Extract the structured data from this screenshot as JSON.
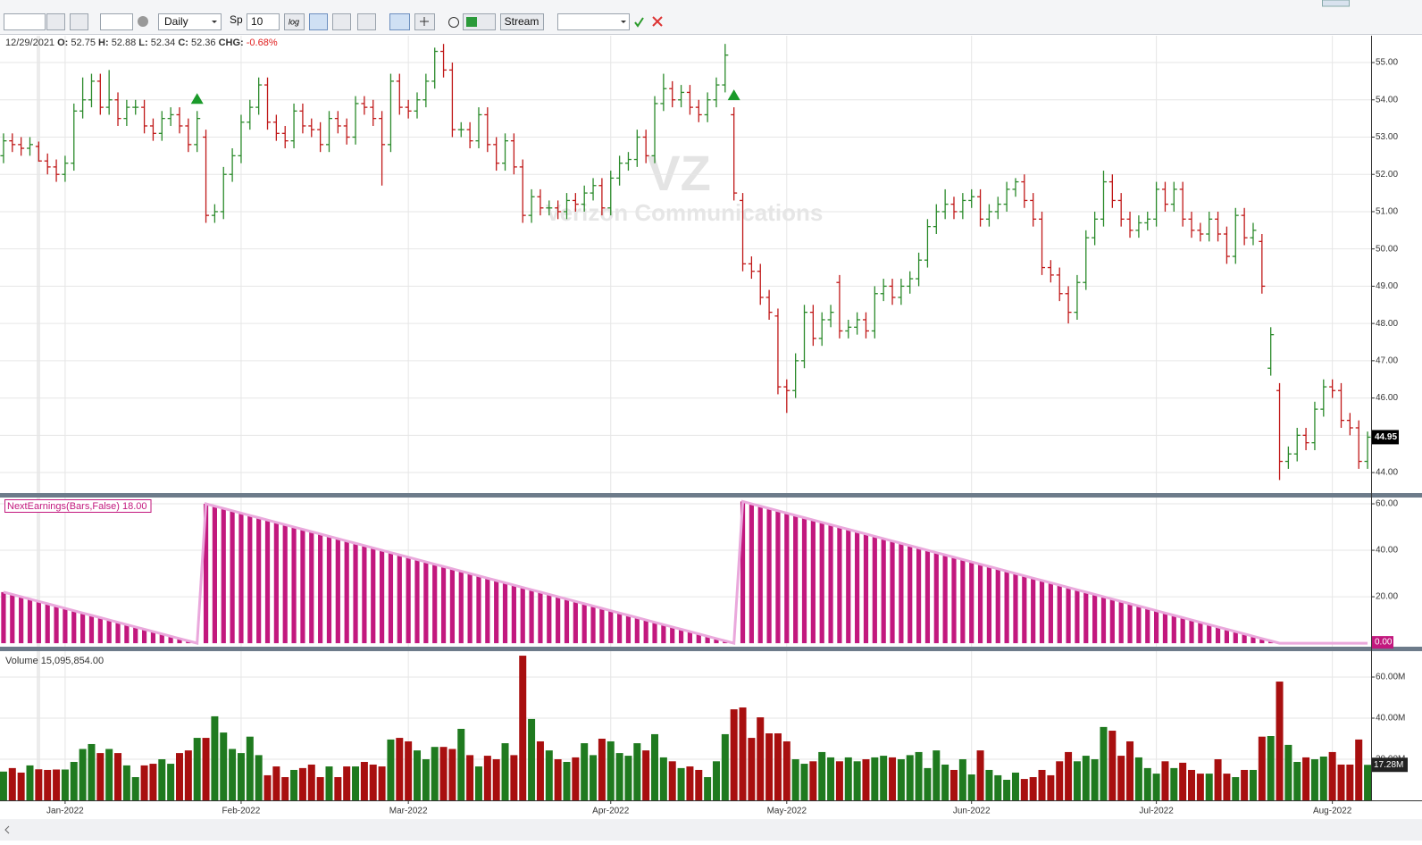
{
  "toolbar": {
    "interval": "Daily",
    "sp_label": "Sp",
    "sp_value": "10",
    "log": "log",
    "stream": "Stream"
  },
  "header": {
    "date": "12/29/2021",
    "o_label": "O:",
    "open": 52.75,
    "h_label": "H:",
    "high": 52.88,
    "l_label": "L:",
    "low": 52.34,
    "c_label": "C:",
    "close": 52.36,
    "chg_label": "CHG:",
    "chg": "-0.68%"
  },
  "watermark": {
    "symbol": "VZ",
    "name": "Verizon Communications"
  },
  "chart_data": [
    {
      "type": "ohlc",
      "xlim": [
        -0.4,
        155.4
      ],
      "ylim": [
        43.45,
        55.72
      ],
      "up_color": "#2a8a2a",
      "down_color": "#c01818",
      "grid": true,
      "yticks": [
        {
          "value": 44,
          "label": "44.00"
        },
        {
          "value": 45,
          "label": "45.00"
        },
        {
          "value": 46,
          "label": "46.00"
        },
        {
          "value": 47,
          "label": "47.00"
        },
        {
          "value": 48,
          "label": "48.00"
        },
        {
          "value": 49,
          "label": "49.00"
        },
        {
          "value": 50,
          "label": "50.00"
        },
        {
          "value": 51,
          "label": "51.00"
        },
        {
          "value": 52,
          "label": "52.00"
        },
        {
          "value": 53,
          "label": "53.00"
        },
        {
          "value": 54,
          "label": "54.00"
        },
        {
          "value": 55,
          "label": "55.00"
        }
      ],
      "events": [
        22,
        83
      ],
      "event_color": "#1a9a2a",
      "last_label": "44.95",
      "open": [
        52.5,
        52.9,
        52.8,
        52.7,
        52.75,
        52.36,
        52.2,
        52.0,
        52.3,
        53.7,
        54.0,
        54.5,
        53.8,
        54.0,
        53.5,
        53.8,
        53.8,
        53.3,
        53.1,
        53.5,
        53.6,
        53.3,
        52.8,
        53.0,
        50.9,
        51.0,
        52.0,
        52.5,
        53.4,
        53.8,
        54.4,
        53.4,
        53.1,
        52.9,
        53.7,
        53.3,
        53.2,
        52.8,
        53.5,
        53.3,
        53.0,
        53.9,
        53.8,
        53.5,
        52.8,
        54.5,
        53.8,
        53.7,
        54.0,
        54.5,
        55.3,
        54.8,
        53.2,
        53.2,
        52.9,
        53.6,
        52.8,
        52.3,
        52.9,
        52.2,
        50.9,
        51.4,
        51.1,
        51.1,
        51.0,
        51.3,
        51.2,
        51.5,
        51.7,
        51.1,
        51.9,
        52.3,
        52.4,
        53.0,
        52.5,
        53.9,
        54.3,
        54.0,
        54.2,
        53.8,
        53.6,
        54.0,
        54.4,
        53.6,
        51.3,
        49.6,
        49.4,
        48.7,
        48.2,
        46.3,
        46.2,
        47.0,
        48.3,
        47.6,
        48.1,
        49.1,
        47.8,
        47.9,
        48.1,
        47.8,
        48.8,
        49.0,
        48.7,
        49.0,
        49.2,
        49.7,
        50.6,
        51.0,
        51.2,
        51.0,
        51.3,
        51.4,
        50.8,
        51.0,
        51.2,
        51.6,
        51.8,
        51.3,
        50.8,
        49.5,
        49.3,
        48.8,
        48.3,
        49.1,
        50.3,
        50.8,
        51.8,
        51.3,
        50.8,
        50.5,
        50.7,
        50.8,
        51.6,
        51.2,
        51.6,
        50.8,
        50.5,
        50.4,
        50.8,
        50.4,
        49.8,
        50.9,
        50.3,
        50.2,
        46.8,
        46.2,
        44.3,
        44.5,
        45.0,
        44.8,
        45.7,
        46.3,
        46.2,
        45.4,
        45.2,
        44.3
      ],
      "high": [
        53.1,
        53.1,
        53.0,
        53.0,
        52.88,
        52.56,
        52.4,
        52.5,
        53.9,
        54.6,
        54.7,
        54.7,
        54.8,
        54.2,
        54.0,
        54.0,
        54.0,
        53.5,
        53.7,
        53.8,
        53.8,
        53.5,
        53.7,
        53.2,
        51.2,
        52.2,
        52.7,
        53.6,
        54.0,
        54.6,
        54.6,
        53.6,
        53.3,
        53.9,
        53.9,
        53.5,
        53.4,
        53.7,
        53.7,
        53.5,
        54.1,
        54.1,
        54.0,
        53.7,
        54.7,
        54.7,
        54.0,
        54.2,
        54.7,
        55.4,
        55.5,
        55.0,
        53.4,
        53.4,
        53.8,
        53.8,
        53.0,
        53.1,
        53.1,
        52.4,
        51.6,
        51.6,
        51.3,
        51.3,
        51.5,
        51.5,
        51.7,
        51.9,
        51.9,
        52.1,
        52.5,
        52.6,
        53.2,
        53.2,
        54.1,
        54.7,
        54.5,
        54.4,
        54.4,
        54.0,
        54.2,
        54.6,
        55.5,
        53.8,
        51.5,
        49.8,
        49.6,
        48.9,
        48.4,
        46.5,
        47.2,
        48.5,
        48.5,
        48.3,
        48.5,
        49.3,
        48.1,
        48.3,
        48.3,
        49.0,
        49.2,
        49.2,
        49.2,
        49.4,
        49.9,
        50.8,
        51.2,
        51.6,
        51.4,
        51.5,
        51.6,
        51.6,
        51.2,
        51.4,
        51.8,
        51.9,
        52.0,
        51.5,
        51.0,
        49.7,
        49.5,
        49.0,
        49.3,
        50.5,
        51.0,
        52.1,
        52.0,
        51.5,
        51.0,
        50.9,
        51.0,
        51.8,
        51.8,
        51.8,
        51.8,
        51.0,
        50.7,
        51.0,
        51.0,
        50.6,
        51.1,
        51.1,
        50.7,
        50.4,
        47.9,
        46.4,
        44.7,
        45.2,
        45.2,
        45.9,
        46.5,
        46.5,
        46.4,
        45.6,
        45.4,
        45.1
      ],
      "low": [
        52.3,
        52.6,
        52.5,
        52.5,
        52.34,
        52.0,
        51.8,
        51.8,
        52.1,
        53.5,
        53.8,
        53.6,
        53.6,
        53.3,
        53.3,
        53.6,
        53.1,
        52.9,
        52.9,
        53.3,
        53.1,
        52.6,
        52.6,
        50.7,
        50.7,
        50.8,
        51.8,
        52.3,
        53.2,
        53.6,
        53.2,
        52.9,
        52.7,
        52.7,
        53.1,
        53.0,
        52.6,
        52.6,
        53.1,
        52.8,
        52.8,
        53.6,
        53.3,
        51.7,
        52.6,
        53.6,
        53.5,
        53.5,
        53.8,
        54.3,
        54.6,
        53.0,
        53.0,
        52.7,
        52.7,
        52.6,
        52.1,
        52.1,
        52.0,
        50.7,
        50.7,
        50.9,
        50.9,
        50.8,
        50.8,
        51.0,
        51.0,
        51.3,
        50.9,
        50.9,
        51.7,
        52.1,
        52.2,
        52.3,
        52.3,
        53.7,
        53.8,
        53.8,
        53.6,
        53.4,
        53.4,
        53.8,
        54.2,
        51.3,
        49.4,
        49.2,
        48.5,
        48.1,
        46.1,
        45.6,
        46.0,
        46.8,
        47.4,
        47.4,
        47.9,
        47.6,
        47.6,
        47.7,
        47.6,
        47.6,
        48.6,
        48.5,
        48.5,
        48.8,
        49.0,
        49.5,
        50.4,
        50.8,
        50.8,
        50.8,
        51.1,
        50.6,
        50.6,
        50.8,
        51.0,
        51.4,
        51.1,
        50.6,
        49.3,
        49.1,
        48.6,
        48.0,
        48.1,
        48.9,
        50.1,
        50.6,
        51.1,
        50.6,
        50.3,
        50.3,
        50.5,
        50.6,
        51.0,
        51.0,
        50.6,
        50.3,
        50.2,
        50.2,
        50.2,
        49.6,
        49.6,
        50.1,
        50.1,
        48.8,
        46.6,
        43.8,
        44.1,
        44.3,
        44.6,
        44.6,
        45.5,
        46.0,
        45.2,
        45.0,
        44.1,
        44.1
      ],
      "close": [
        52.9,
        52.8,
        52.7,
        52.8,
        52.36,
        52.2,
        52.0,
        52.3,
        53.7,
        54.0,
        54.5,
        53.8,
        54.0,
        53.5,
        53.8,
        53.8,
        53.3,
        53.1,
        53.5,
        53.6,
        53.3,
        52.8,
        53.5,
        50.9,
        51.0,
        52.0,
        52.5,
        53.4,
        53.8,
        54.4,
        53.4,
        53.1,
        52.9,
        53.7,
        53.3,
        53.2,
        52.8,
        53.5,
        53.3,
        53.0,
        53.9,
        53.8,
        53.5,
        52.8,
        54.5,
        53.8,
        53.7,
        54.0,
        54.5,
        55.3,
        54.8,
        53.2,
        53.2,
        52.9,
        53.6,
        52.8,
        52.3,
        52.9,
        52.2,
        50.9,
        51.4,
        51.1,
        51.1,
        51.0,
        51.3,
        51.2,
        51.5,
        51.7,
        51.1,
        51.9,
        52.3,
        52.4,
        53.0,
        52.5,
        53.9,
        54.3,
        54.0,
        54.2,
        53.8,
        53.6,
        54.0,
        54.4,
        55.2,
        51.5,
        49.6,
        49.4,
        48.7,
        48.3,
        46.3,
        46.2,
        47.0,
        48.3,
        47.6,
        48.1,
        48.3,
        47.8,
        47.9,
        48.1,
        47.8,
        48.8,
        49.0,
        48.7,
        49.0,
        49.2,
        49.7,
        50.6,
        51.0,
        51.2,
        51.0,
        51.3,
        51.4,
        50.8,
        51.0,
        51.2,
        51.6,
        51.8,
        51.3,
        50.8,
        49.5,
        49.3,
        48.8,
        48.3,
        49.1,
        50.3,
        50.8,
        51.8,
        51.3,
        50.8,
        50.5,
        50.7,
        50.8,
        51.6,
        51.2,
        51.6,
        50.8,
        50.5,
        50.4,
        50.8,
        50.4,
        49.8,
        50.9,
        50.3,
        50.5,
        49.0,
        47.7,
        44.3,
        44.5,
        45.0,
        44.8,
        45.7,
        46.3,
        46.2,
        45.4,
        45.2,
        44.3,
        44.95
      ]
    },
    {
      "type": "bar",
      "title": "NextEarnings(Bars,False) 18.00",
      "xlim": [
        -0.4,
        155.4
      ],
      "ylim": [
        -1.5,
        62.7
      ],
      "color": "#c2187e",
      "line_color": "#eaa8dc",
      "last_label": "0.00",
      "yticks": [
        {
          "value": 20,
          "label": "20.00"
        },
        {
          "value": 40,
          "label": "40.00"
        },
        {
          "value": 60,
          "label": "60.00"
        }
      ],
      "values": [
        22,
        21,
        20,
        19,
        18,
        17,
        16,
        15,
        14,
        13,
        12,
        11,
        10,
        9,
        8,
        7,
        6,
        5,
        4,
        3,
        2,
        1,
        0,
        60,
        59,
        58,
        57,
        56,
        55,
        54,
        53,
        52,
        51,
        50,
        49,
        48,
        47,
        46,
        45,
        44,
        43,
        42,
        41,
        40,
        39,
        38,
        37,
        36,
        35,
        34,
        33,
        32,
        31,
        30,
        29,
        28,
        27,
        26,
        25,
        24,
        23,
        22,
        21,
        20,
        19,
        18,
        17,
        16,
        15,
        14,
        13,
        12,
        11,
        10,
        9,
        8,
        7,
        6,
        5,
        4,
        3,
        2,
        1,
        0,
        61,
        60,
        59,
        58,
        57,
        56,
        55,
        54,
        53,
        52,
        51,
        50,
        49,
        48,
        47,
        46,
        45,
        44,
        43,
        42,
        41,
        40,
        39,
        38,
        37,
        36,
        35,
        34,
        33,
        32,
        31,
        30,
        29,
        28,
        27,
        26,
        25,
        24,
        23,
        22,
        21,
        20,
        19,
        18,
        17,
        16,
        15,
        14,
        13,
        12,
        11,
        10,
        9,
        8,
        7,
        6,
        5,
        4,
        3,
        2,
        1,
        0,
        0,
        0,
        0,
        0,
        0,
        0,
        0,
        0,
        0,
        0
      ]
    },
    {
      "type": "volume",
      "title": "Volume 15,095,854.00",
      "xlim": [
        -0.4,
        155.4
      ],
      "ylim": [
        0,
        72.6
      ],
      "up_color": "#1f7a1f",
      "down_color": "#a80f0f",
      "last_label": "17.28M",
      "yticks": [
        {
          "value": 20,
          "label": "20.00M"
        },
        {
          "value": 40,
          "label": "40.00M"
        },
        {
          "value": 60,
          "label": "60.00M"
        }
      ],
      "xticks": [
        {
          "value": 7,
          "label": "Jan-2022"
        },
        {
          "value": 27,
          "label": "Feb-2022"
        },
        {
          "value": 46,
          "label": "Mar-2022"
        },
        {
          "value": 69,
          "label": "Apr-2022"
        },
        {
          "value": 89,
          "label": "May-2022"
        },
        {
          "value": 110,
          "label": "Jun-2022"
        },
        {
          "value": 131,
          "label": "Jul-2022"
        },
        {
          "value": 151,
          "label": "Aug-2022"
        }
      ],
      "values": [
        14.0,
        15.7,
        13.5,
        17,
        15.1,
        14.8,
        15,
        15,
        18.7,
        25,
        27.4,
        23,
        25,
        23,
        17,
        11.3,
        17,
        17.8,
        20,
        17.8,
        23,
        24.3,
        30.4,
        30.4,
        40.9,
        33,
        25,
        23,
        31,
        22,
        12.2,
        16.5,
        11.3,
        14.8,
        15.7,
        17.4,
        11.3,
        16.5,
        11.3,
        16.5,
        16.5,
        18.7,
        17.4,
        16.5,
        29.6,
        30.4,
        28.7,
        24.3,
        20,
        26,
        26,
        25,
        34.8,
        22,
        16.5,
        21.7,
        20,
        27.8,
        22,
        70.4,
        39.6,
        28.7,
        24.3,
        20,
        18.7,
        20.9,
        27.8,
        22,
        30,
        28.7,
        23,
        21.7,
        27.8,
        24.3,
        32.2,
        20.9,
        19,
        15.7,
        16.5,
        14.8,
        11.3,
        19,
        32.2,
        44.3,
        45.2,
        30.4,
        40.4,
        32.6,
        32.6,
        28.7,
        20,
        17.8,
        19,
        23.5,
        20.9,
        19,
        20.9,
        19,
        20,
        20.9,
        21.7,
        20.9,
        20.0,
        22,
        23.5,
        15.7,
        24.3,
        17.4,
        14.8,
        20,
        12.6,
        24.3,
        14.8,
        12.2,
        10,
        13.5,
        10.4,
        11.3,
        14.8,
        12.2,
        19,
        23.5,
        19,
        21.7,
        20,
        35.7,
        33.9,
        21.7,
        28.7,
        20.9,
        15.7,
        13,
        19,
        15.7,
        18.3,
        14.8,
        13,
        13,
        20,
        13,
        11.3,
        14.8,
        14.8,
        31,
        31.3,
        57.8,
        27,
        18.7,
        20.9,
        20,
        21.3,
        23.5,
        17.4,
        17.4,
        29.6,
        17.28
      ]
    }
  ]
}
